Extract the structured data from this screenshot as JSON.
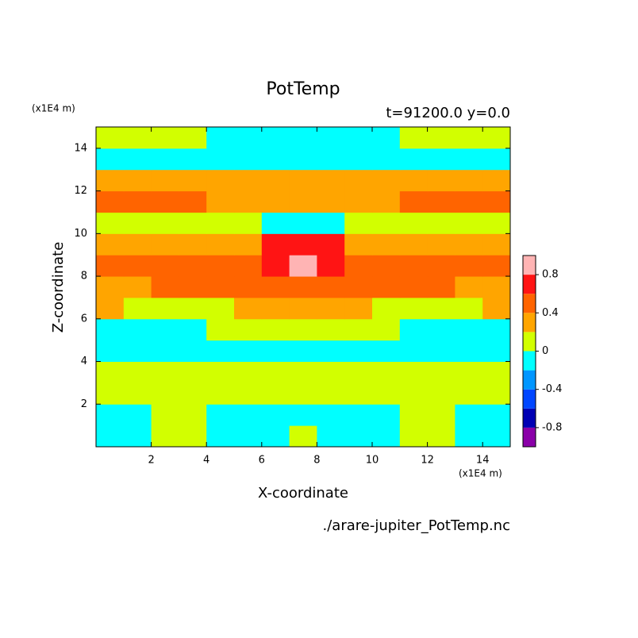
{
  "chart_data": {
    "type": "contour",
    "title": "PotTemp",
    "subtitle": "t=91200.0 y=0.0",
    "xlabel": "X-coordinate",
    "ylabel": "Z-coordinate",
    "xunit": "(x1E4 m)",
    "yunit": "(x1E4 m)",
    "source": "./arare-jupiter_PotTemp.nc",
    "xlim": [
      0,
      15
    ],
    "ylim": [
      0,
      15
    ],
    "xticks": [
      2,
      4,
      6,
      8,
      10,
      12,
      14
    ],
    "yticks": [
      2,
      4,
      6,
      8,
      10,
      12,
      14
    ],
    "x": [
      0.5,
      1.5,
      2.5,
      3.5,
      4.5,
      5.5,
      6.5,
      7.5,
      8.5,
      9.5,
      10.5,
      11.5,
      12.5,
      13.5,
      14.5
    ],
    "y": [
      0.5,
      1.5,
      2.5,
      3.5,
      4.5,
      5.5,
      6.5,
      7.5,
      8.5,
      9.5,
      10.5,
      11.5,
      12.5,
      13.5,
      14.5
    ],
    "z": [
      [
        -0.1,
        -0.1,
        0.1,
        0.1,
        -0.1,
        -0.1,
        -0.1,
        0.1,
        -0.1,
        -0.1,
        -0.1,
        0.1,
        0.1,
        -0.1,
        -0.1
      ],
      [
        -0.1,
        -0.1,
        0.1,
        0.1,
        -0.1,
        -0.1,
        -0.1,
        -0.1,
        -0.1,
        -0.1,
        -0.1,
        0.1,
        0.1,
        -0.1,
        -0.1
      ],
      [
        0.1,
        0.1,
        0.1,
        0.1,
        0.1,
        0.1,
        0.1,
        0.1,
        0.1,
        0.1,
        0.1,
        0.1,
        0.1,
        0.1,
        0.1
      ],
      [
        0.1,
        0.1,
        0.1,
        0.1,
        0.1,
        0.1,
        0.1,
        0.1,
        0.1,
        0.1,
        0.1,
        0.1,
        0.1,
        0.1,
        0.1
      ],
      [
        -0.1,
        -0.1,
        -0.1,
        -0.1,
        -0.1,
        -0.1,
        -0.1,
        -0.1,
        -0.1,
        -0.1,
        -0.1,
        -0.1,
        -0.1,
        -0.1,
        -0.1
      ],
      [
        -0.1,
        -0.1,
        -0.1,
        -0.1,
        0.1,
        0.1,
        0.1,
        0.1,
        0.1,
        0.1,
        0.1,
        -0.1,
        -0.1,
        -0.1,
        -0.1
      ],
      [
        0.3,
        0.1,
        0.1,
        0.1,
        0.1,
        0.3,
        0.3,
        0.3,
        0.3,
        0.3,
        0.1,
        0.1,
        0.1,
        0.1,
        0.3
      ],
      [
        0.3,
        0.3,
        0.5,
        0.5,
        0.5,
        0.5,
        0.5,
        0.5,
        0.5,
        0.5,
        0.5,
        0.5,
        0.5,
        0.3,
        0.3
      ],
      [
        0.5,
        0.5,
        0.5,
        0.5,
        0.5,
        0.5,
        0.7,
        0.9,
        0.7,
        0.5,
        0.5,
        0.5,
        0.5,
        0.5,
        0.5
      ],
      [
        0.3,
        0.3,
        0.3,
        0.3,
        0.3,
        0.3,
        0.7,
        0.7,
        0.7,
        0.3,
        0.3,
        0.3,
        0.3,
        0.3,
        0.3
      ],
      [
        0.1,
        0.1,
        0.1,
        0.1,
        0.1,
        0.1,
        -0.1,
        -0.1,
        -0.1,
        0.1,
        0.1,
        0.1,
        0.1,
        0.1,
        0.1
      ],
      [
        0.5,
        0.5,
        0.5,
        0.5,
        0.3,
        0.3,
        0.3,
        0.3,
        0.3,
        0.3,
        0.3,
        0.5,
        0.5,
        0.5,
        0.5
      ],
      [
        0.3,
        0.3,
        0.3,
        0.3,
        0.3,
        0.3,
        0.3,
        0.3,
        0.3,
        0.3,
        0.3,
        0.3,
        0.3,
        0.3,
        0.3
      ],
      [
        -0.1,
        -0.1,
        -0.1,
        -0.1,
        -0.1,
        -0.1,
        -0.1,
        -0.1,
        -0.1,
        -0.1,
        -0.1,
        -0.1,
        -0.1,
        -0.1,
        -0.1
      ],
      [
        0.1,
        0.1,
        0.1,
        0.1,
        -0.1,
        -0.1,
        -0.1,
        -0.1,
        -0.1,
        -0.1,
        -0.1,
        0.1,
        0.1,
        0.1,
        0.1
      ]
    ],
    "levels": [
      -1,
      -0.8,
      -0.6,
      -0.4,
      -0.2,
      0,
      0.2,
      0.4,
      0.6,
      0.8,
      1
    ],
    "colors": [
      "#8a00a8",
      "#0000b4",
      "#0046ff",
      "#0096ff",
      "#00ffff",
      "#d2ff00",
      "#ffa500",
      "#ff6400",
      "#ff1414",
      "#ffb4b4"
    ],
    "colorbar_ticks": [
      -0.8,
      -0.4,
      0,
      0.4,
      0.8
    ]
  }
}
